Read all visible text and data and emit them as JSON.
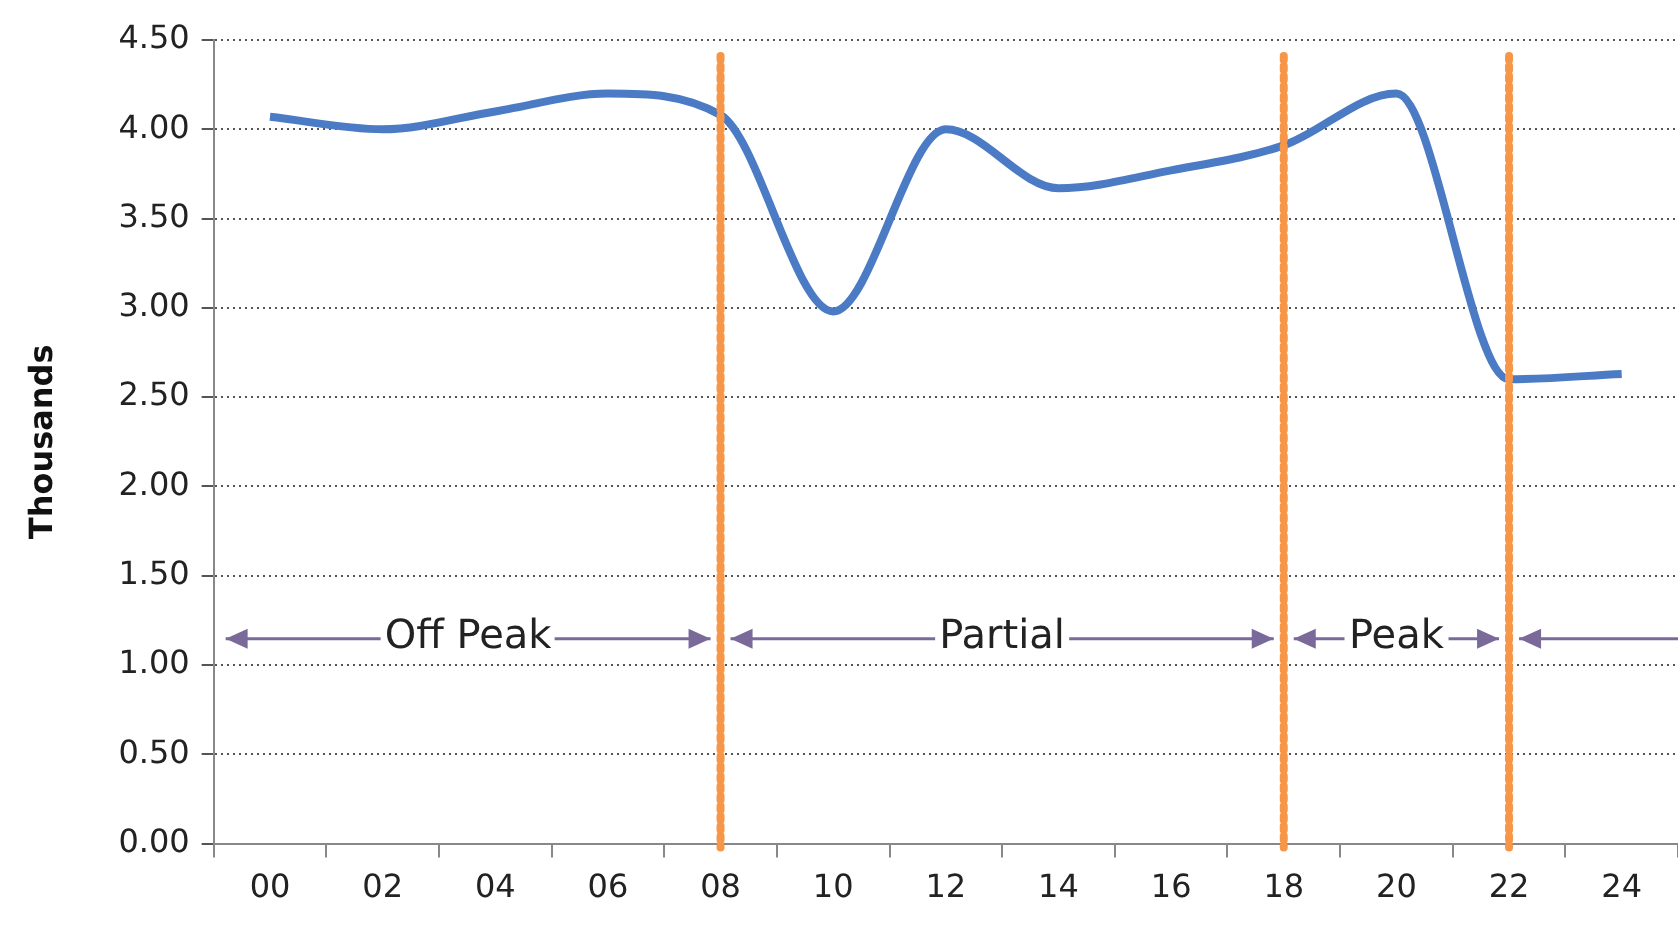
{
  "chart_data": {
    "type": "line",
    "ylabel": "Thousands",
    "categories": [
      "00",
      "02",
      "04",
      "06",
      "08",
      "10",
      "12",
      "14",
      "16",
      "18",
      "20",
      "22",
      "24"
    ],
    "series": [
      {
        "color": "#4a7bc4",
        "values": [
          4.07,
          4.0,
          4.1,
          4.2,
          4.08,
          2.98,
          4.0,
          3.67,
          3.77,
          3.91,
          4.2,
          2.6,
          2.63
        ]
      }
    ],
    "ylim": [
      0,
      4.5
    ],
    "yticks": [
      {
        "value": 0,
        "label": "0.00"
      },
      {
        "value": 0.5,
        "label": "0.50"
      },
      {
        "value": 1,
        "label": "1.00"
      },
      {
        "value": 1.5,
        "label": "1.50"
      },
      {
        "value": 2,
        "label": "2.00"
      },
      {
        "value": 2.5,
        "label": "2.50"
      },
      {
        "value": 3,
        "label": "3.00"
      },
      {
        "value": 3.5,
        "label": "3.50"
      },
      {
        "value": 4,
        "label": "4.00"
      },
      {
        "value": 4.5,
        "label": "4.50"
      }
    ],
    "grid": "y",
    "legend": false,
    "marker": "none",
    "line_style": "solid",
    "ref_lines": [
      {
        "axis": "x",
        "value": "08",
        "color": "#f79646",
        "line_style": "dotted"
      },
      {
        "axis": "x",
        "value": "18",
        "color": "#f79646",
        "line_style": "dotted"
      },
      {
        "axis": "x",
        "value": "22",
        "color": "#f79646",
        "line_style": "dotted"
      }
    ],
    "annotations": [
      "Off Peak",
      "Partial",
      "Peak"
    ]
  }
}
